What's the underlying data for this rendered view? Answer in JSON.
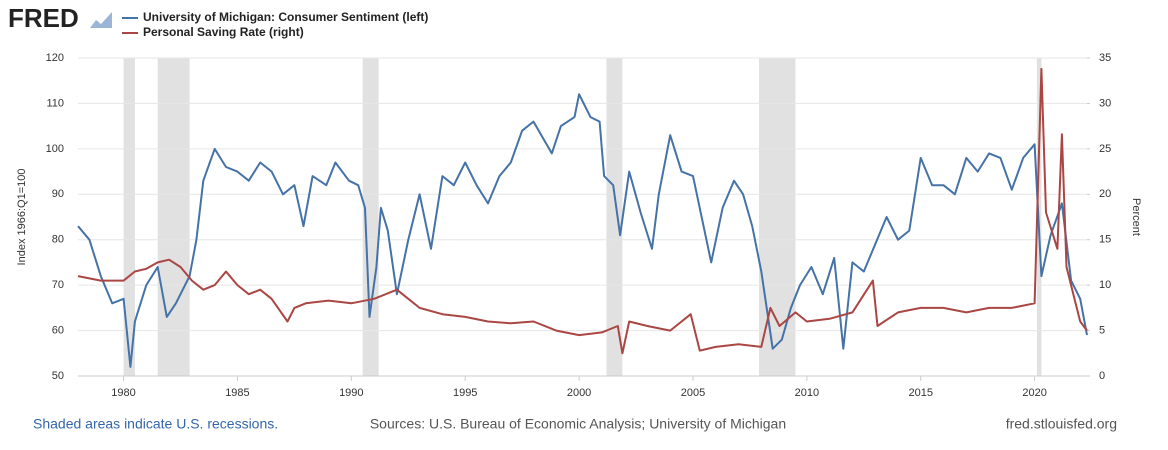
{
  "chart_data": {
    "type": "line",
    "logo": "FRED",
    "xlim": [
      1978,
      2022.3
    ],
    "xticks": [
      1980,
      1985,
      1990,
      1995,
      2000,
      2005,
      2010,
      2015,
      2020
    ],
    "ylim": [
      50,
      120
    ],
    "yticks": [
      50,
      60,
      70,
      80,
      90,
      100,
      110,
      120
    ],
    "y2lim": [
      0,
      35
    ],
    "y2ticks": [
      0,
      5,
      10,
      15,
      20,
      25,
      30,
      35
    ],
    "ylabel": "Index 1966:Q1=100",
    "y2label": "Percent",
    "grid": true,
    "recession_color": "#e1e1e1",
    "recessions": [
      [
        1980.0,
        1980.5
      ],
      [
        1981.5,
        1982.9
      ],
      [
        1990.5,
        1991.2
      ],
      [
        2001.2,
        2001.9
      ],
      [
        2007.9,
        2009.5
      ],
      [
        2020.1,
        2020.3
      ]
    ],
    "series": [
      {
        "name": "University of Michigan: Consumer Sentiment (left)",
        "color": "#4572a7",
        "axis": "y",
        "x": [
          1978.0,
          1978.5,
          1979.0,
          1979.5,
          1980.0,
          1980.3,
          1980.5,
          1981.0,
          1981.5,
          1981.9,
          1982.3,
          1982.9,
          1983.2,
          1983.5,
          1984.0,
          1984.5,
          1985.0,
          1985.5,
          1986.0,
          1986.5,
          1987.0,
          1987.5,
          1987.9,
          1988.3,
          1988.9,
          1989.3,
          1989.9,
          1990.3,
          1990.6,
          1990.8,
          1991.1,
          1991.3,
          1991.6,
          1992.0,
          1992.5,
          1993.0,
          1993.5,
          1994.0,
          1994.5,
          1995.0,
          1995.5,
          1996.0,
          1996.5,
          1997.0,
          1997.5,
          1998.0,
          1998.8,
          1999.2,
          1999.8,
          2000.0,
          2000.5,
          2000.9,
          2001.1,
          2001.5,
          2001.8,
          2002.2,
          2002.7,
          2003.2,
          2003.5,
          2004.0,
          2004.5,
          2005.0,
          2005.8,
          2006.3,
          2006.8,
          2007.2,
          2007.6,
          2008.0,
          2008.5,
          2008.9,
          2009.3,
          2009.7,
          2010.2,
          2010.7,
          2011.2,
          2011.6,
          2012.0,
          2012.5,
          2013.0,
          2013.5,
          2014.0,
          2014.5,
          2015.0,
          2015.5,
          2016.0,
          2016.5,
          2017.0,
          2017.5,
          2018.0,
          2018.5,
          2019.0,
          2019.5,
          2020.0,
          2020.3,
          2020.7,
          2021.2,
          2021.6,
          2022.0,
          2022.3
        ],
        "values": [
          83,
          80,
          72,
          66,
          67,
          52,
          62,
          70,
          74,
          63,
          66,
          72,
          80,
          93,
          100,
          96,
          95,
          93,
          97,
          95,
          90,
          92,
          83,
          94,
          92,
          97,
          93,
          92,
          87,
          63,
          74,
          87,
          82,
          68,
          80,
          90,
          78,
          94,
          92,
          97,
          92,
          88,
          94,
          97,
          104,
          106,
          99,
          105,
          107,
          112,
          107,
          106,
          94,
          92,
          81,
          95,
          86,
          78,
          90,
          103,
          95,
          94,
          75,
          87,
          93,
          90,
          83,
          73,
          56,
          58,
          65,
          70,
          74,
          68,
          76,
          56,
          75,
          73,
          79,
          85,
          80,
          82,
          98,
          92,
          92,
          90,
          98,
          95,
          99,
          98,
          91,
          98,
          101,
          72,
          81,
          88,
          71,
          67,
          59
        ]
      },
      {
        "name": "Personal Saving Rate (right)",
        "color": "#aa4643",
        "axis": "y2",
        "x": [
          1978.0,
          1979.0,
          1980.0,
          1980.5,
          1981.0,
          1981.5,
          1982.0,
          1982.5,
          1983.0,
          1983.5,
          1984.0,
          1984.5,
          1985.0,
          1985.5,
          1986.0,
          1986.5,
          1987.2,
          1987.5,
          1988.0,
          1989.0,
          1990.0,
          1991.0,
          1992.0,
          1992.5,
          1993.0,
          1994.0,
          1995.0,
          1996.0,
          1997.0,
          1998.0,
          1999.0,
          2000.0,
          2001.0,
          2001.7,
          2001.9,
          2002.2,
          2003.0,
          2004.0,
          2004.9,
          2005.3,
          2006.0,
          2007.0,
          2008.0,
          2008.4,
          2008.8,
          2009.5,
          2010.0,
          2011.0,
          2012.0,
          2012.9,
          2013.1,
          2014.0,
          2015.0,
          2016.0,
          2017.0,
          2018.0,
          2019.0,
          2020.0,
          2020.3,
          2020.5,
          2021.0,
          2021.2,
          2021.4,
          2021.8,
          2022.0,
          2022.3
        ],
        "values": [
          11,
          10.5,
          10.5,
          11.5,
          11.8,
          12.5,
          12.8,
          12,
          10.5,
          9.5,
          10,
          11.5,
          10,
          9,
          9.5,
          8.5,
          6,
          7.5,
          8,
          8.3,
          8,
          8.5,
          9.5,
          8.5,
          7.5,
          6.8,
          6.5,
          6,
          5.8,
          6,
          5,
          4.5,
          4.8,
          5.5,
          2.5,
          6,
          5.5,
          5,
          6.8,
          2.8,
          3.2,
          3.5,
          3.2,
          7.5,
          5.5,
          7,
          6,
          6.3,
          7,
          10.5,
          5.5,
          7,
          7.5,
          7.5,
          7,
          7.5,
          7.5,
          8,
          33.8,
          18,
          14,
          26.6,
          12,
          8,
          6,
          5
        ]
      }
    ],
    "footer_left": "Shaded areas indicate U.S. recessions.",
    "footer_center": "Sources: U.S. Bureau of Economic Analysis; University of Michigan",
    "footer_right": "fred.stlouisfed.org"
  }
}
